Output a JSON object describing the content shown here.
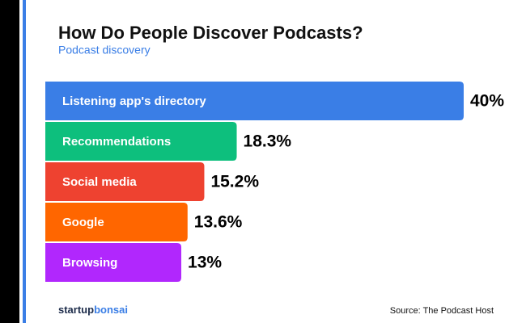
{
  "chart_data": {
    "type": "bar",
    "orientation": "horizontal",
    "title": "How Do People Discover Podcasts?",
    "subtitle": "Podcast discovery",
    "categories": [
      "Listening app's directory",
      "Recommendations",
      "Social media",
      "Google",
      "Browsing"
    ],
    "values": [
      40,
      18.3,
      15.2,
      13.6,
      13
    ],
    "value_labels": [
      "40%",
      "18.3%",
      "15.2%",
      "13.6%",
      "13%"
    ],
    "colors": [
      "#3a7ee6",
      "#0dbf7d",
      "#ee4230",
      "#ff6600",
      "#b127fd"
    ],
    "brand": [
      "startup",
      "bonsai"
    ],
    "source": "Source: The Podcast Host"
  }
}
